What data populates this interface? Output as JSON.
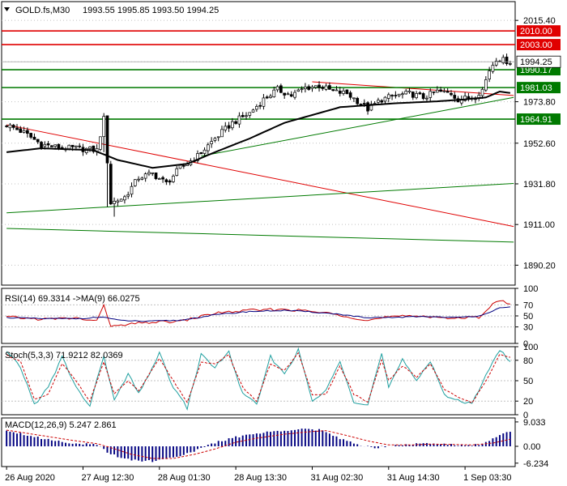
{
  "header": {
    "symbol_label": "GOLD.fs,M30",
    "ohlc_label": "1993.55 1995.85 1993.50 1994.25"
  },
  "colors": {
    "background": "#ffffff",
    "frame": "#000000",
    "grid": "#c0c0c0",
    "bull_candle": "#ffffff",
    "bear_candle": "#000000",
    "resistance": "#e00000",
    "support": "#007a00",
    "ma": "#000000",
    "rsi": "#cc0000",
    "rsi_ma": "#000080",
    "stoch_main": "#20a0a0",
    "stoch_signal": "#cc0000",
    "macd_hist": "#000080",
    "macd_signal": "#cc0000"
  },
  "chart_data": [
    {
      "type": "candlestick",
      "title": "GOLD.fs,M30",
      "ylim": [
        1880,
        2025
      ],
      "y_ticks": [
        "2015.40",
        "1994.25",
        "1973.80",
        "1952.60",
        "1931.80",
        "1911.00",
        "1890.20"
      ],
      "x_ticks": [
        "26 Aug 2020",
        "27 Aug 12:30",
        "28 Aug 01:30",
        "28 Aug 13:30",
        "31 Aug 02:30",
        "31 Aug 14:30",
        "1 Sep 03:30"
      ],
      "x_ticks_bar": [
        0,
        22,
        44,
        66,
        88,
        110,
        132
      ],
      "bar_count": 146,
      "current_price": "1994.25",
      "horizontal_levels": [
        {
          "value": 2010.0,
          "label": "2010.00",
          "color": "#e00000"
        },
        {
          "value": 2003.0,
          "label": "2003.00",
          "color": "#e00000"
        },
        {
          "value": 1990.17,
          "label": "1990.17",
          "color": "#007a00"
        },
        {
          "value": 1981.03,
          "label": "1981.03",
          "color": "#007a00"
        },
        {
          "value": 1964.91,
          "label": "1964.91",
          "color": "#007a00"
        }
      ],
      "trendlines": [
        {
          "from": [
            0,
            1962
          ],
          "to": [
            146,
            1910
          ],
          "color": "#e00000"
        },
        {
          "from": [
            0,
            1917
          ],
          "to": [
            146,
            1932
          ],
          "color": "#007a00"
        },
        {
          "from": [
            0,
            1909
          ],
          "to": [
            146,
            1902
          ],
          "color": "#007a00"
        },
        {
          "from": [
            56,
            1946
          ],
          "to": [
            146,
            1976
          ],
          "color": "#007a00"
        },
        {
          "from": [
            88,
            1984
          ],
          "to": [
            146,
            1977
          ],
          "color": "#e00000"
        }
      ],
      "series": [
        {
          "name": "close",
          "anchors": [
            [
              0,
              1962
            ],
            [
              5,
              1958
            ],
            [
              10,
              1952
            ],
            [
              16,
              1950
            ],
            [
              20,
              1950
            ],
            [
              26,
              1949
            ],
            [
              28,
              1965
            ],
            [
              30,
              1922
            ],
            [
              34,
              1925
            ],
            [
              38,
              1935
            ],
            [
              42,
              1937
            ],
            [
              46,
              1932
            ],
            [
              50,
              1940
            ],
            [
              55,
              1946
            ],
            [
              60,
              1955
            ],
            [
              65,
              1963
            ],
            [
              70,
              1968
            ],
            [
              74,
              1975
            ],
            [
              78,
              1980
            ],
            [
              82,
              1977
            ],
            [
              86,
              1981
            ],
            [
              90,
              1982
            ],
            [
              94,
              1979
            ],
            [
              98,
              1978
            ],
            [
              102,
              1973
            ],
            [
              104,
              1970
            ],
            [
              108,
              1975
            ],
            [
              112,
              1977
            ],
            [
              116,
              1978
            ],
            [
              120,
              1976
            ],
            [
              124,
              1979
            ],
            [
              128,
              1978
            ],
            [
              130,
              1975
            ],
            [
              134,
              1976
            ],
            [
              137,
              1980
            ],
            [
              139,
              1990
            ],
            [
              141,
              1996
            ],
            [
              143,
              1995
            ],
            [
              145,
              1994.25
            ]
          ]
        },
        {
          "name": "moving-average",
          "anchors": [
            [
              0,
              1948
            ],
            [
              10,
              1950
            ],
            [
              25,
              1949
            ],
            [
              32,
              1944
            ],
            [
              42,
              1940
            ],
            [
              52,
              1942
            ],
            [
              60,
              1948
            ],
            [
              70,
              1955
            ],
            [
              80,
              1963
            ],
            [
              88,
              1967
            ],
            [
              96,
              1971
            ],
            [
              104,
              1972
            ],
            [
              112,
              1973
            ],
            [
              124,
              1974
            ],
            [
              132,
              1975
            ],
            [
              138,
              1976
            ],
            [
              142,
              1979
            ],
            [
              146,
              1978
            ]
          ]
        }
      ]
    },
    {
      "type": "line",
      "title": "RSI(14) 69.3314  ->MA(9) 66.0275",
      "ylim": [
        0,
        100
      ],
      "y_ticks": [
        "100",
        "70",
        "50",
        "30",
        "0"
      ],
      "series": [
        {
          "name": "RSI(14)",
          "anchors": [
            [
              0,
              48
            ],
            [
              10,
              44
            ],
            [
              20,
              46
            ],
            [
              26,
              40
            ],
            [
              28,
              72
            ],
            [
              30,
              30
            ],
            [
              40,
              38
            ],
            [
              50,
              40
            ],
            [
              60,
              55
            ],
            [
              70,
              60
            ],
            [
              80,
              62
            ],
            [
              88,
              58
            ],
            [
              96,
              52
            ],
            [
              104,
              42
            ],
            [
              110,
              48
            ],
            [
              120,
              50
            ],
            [
              130,
              45
            ],
            [
              136,
              48
            ],
            [
              140,
              72
            ],
            [
              142,
              78
            ],
            [
              146,
              69
            ]
          ]
        },
        {
          "name": "MA(9)",
          "anchors": [
            [
              0,
              47
            ],
            [
              10,
              45
            ],
            [
              20,
              45
            ],
            [
              28,
              48
            ],
            [
              32,
              42
            ],
            [
              40,
              40
            ],
            [
              50,
              42
            ],
            [
              60,
              52
            ],
            [
              70,
              58
            ],
            [
              80,
              60
            ],
            [
              88,
              57
            ],
            [
              96,
              53
            ],
            [
              104,
              46
            ],
            [
              110,
              47
            ],
            [
              120,
              49
            ],
            [
              130,
              47
            ],
            [
              136,
              50
            ],
            [
              142,
              64
            ],
            [
              146,
              66
            ]
          ]
        }
      ]
    },
    {
      "type": "line",
      "title": "Stoch(5,3,3) 71.9212 82.0369",
      "ylim": [
        0,
        100
      ],
      "y_ticks": [
        "100",
        "80",
        "50",
        "20",
        "0"
      ],
      "series": [
        {
          "name": "main",
          "anchors": [
            [
              0,
              92
            ],
            [
              4,
              70
            ],
            [
              8,
              15
            ],
            [
              12,
              40
            ],
            [
              16,
              85
            ],
            [
              20,
              40
            ],
            [
              24,
              12
            ],
            [
              28,
              88
            ],
            [
              31,
              20
            ],
            [
              35,
              60
            ],
            [
              38,
              30
            ],
            [
              44,
              90
            ],
            [
              48,
              40
            ],
            [
              52,
              10
            ],
            [
              56,
              88
            ],
            [
              60,
              70
            ],
            [
              64,
              92
            ],
            [
              68,
              30
            ],
            [
              72,
              15
            ],
            [
              76,
              85
            ],
            [
              80,
              60
            ],
            [
              84,
              95
            ],
            [
              88,
              20
            ],
            [
              92,
              35
            ],
            [
              96,
              80
            ],
            [
              100,
              20
            ],
            [
              104,
              15
            ],
            [
              108,
              90
            ],
            [
              110,
              40
            ],
            [
              114,
              80
            ],
            [
              118,
              50
            ],
            [
              122,
              80
            ],
            [
              126,
              30
            ],
            [
              130,
              20
            ],
            [
              134,
              15
            ],
            [
              138,
              60
            ],
            [
              142,
              95
            ],
            [
              146,
              72
            ]
          ]
        },
        {
          "name": "signal",
          "anchors": [
            [
              0,
              88
            ],
            [
              4,
              78
            ],
            [
              8,
              22
            ],
            [
              12,
              30
            ],
            [
              16,
              75
            ],
            [
              20,
              50
            ],
            [
              24,
              20
            ],
            [
              28,
              78
            ],
            [
              31,
              30
            ],
            [
              35,
              50
            ],
            [
              38,
              35
            ],
            [
              44,
              82
            ],
            [
              48,
              50
            ],
            [
              52,
              18
            ],
            [
              56,
              78
            ],
            [
              60,
              74
            ],
            [
              64,
              88
            ],
            [
              68,
              40
            ],
            [
              72,
              20
            ],
            [
              76,
              75
            ],
            [
              80,
              65
            ],
            [
              84,
              90
            ],
            [
              88,
              30
            ],
            [
              92,
              30
            ],
            [
              96,
              72
            ],
            [
              100,
              30
            ],
            [
              104,
              18
            ],
            [
              108,
              80
            ],
            [
              110,
              50
            ],
            [
              114,
              72
            ],
            [
              118,
              55
            ],
            [
              122,
              75
            ],
            [
              126,
              38
            ],
            [
              130,
              25
            ],
            [
              134,
              18
            ],
            [
              138,
              50
            ],
            [
              142,
              88
            ],
            [
              146,
              82
            ]
          ]
        }
      ]
    },
    {
      "type": "bar",
      "title": "MACD(12,26,9) 5.247 2.861",
      "ylim": [
        -7.5,
        10.5
      ],
      "y_ticks": [
        "9.033",
        "0.00",
        "-6.234"
      ],
      "series": [
        {
          "name": "MACD",
          "anchors": [
            [
              0,
              6
            ],
            [
              10,
              3
            ],
            [
              20,
              1
            ],
            [
              26,
              0.5
            ],
            [
              30,
              -3
            ],
            [
              36,
              -5
            ],
            [
              42,
              -5.5
            ],
            [
              48,
              -4
            ],
            [
              54,
              -2
            ],
            [
              58,
              0.5
            ],
            [
              62,
              2
            ],
            [
              68,
              4
            ],
            [
              74,
              5
            ],
            [
              80,
              6
            ],
            [
              86,
              6.5
            ],
            [
              90,
              6
            ],
            [
              96,
              3
            ],
            [
              100,
              1
            ],
            [
              106,
              -0.5
            ],
            [
              112,
              0.5
            ],
            [
              118,
              1
            ],
            [
              124,
              0.8
            ],
            [
              130,
              0.5
            ],
            [
              136,
              0.5
            ],
            [
              140,
              3
            ],
            [
              144,
              5
            ],
            [
              146,
              5.2
            ]
          ]
        },
        {
          "name": "signal",
          "anchors": [
            [
              0,
              6
            ],
            [
              10,
              4
            ],
            [
              20,
              2
            ],
            [
              26,
              1
            ],
            [
              30,
              -0.5
            ],
            [
              36,
              -3
            ],
            [
              42,
              -4.5
            ],
            [
              48,
              -4.5
            ],
            [
              54,
              -3
            ],
            [
              60,
              -1
            ],
            [
              66,
              1.5
            ],
            [
              72,
              3
            ],
            [
              80,
              4.5
            ],
            [
              88,
              5.5
            ],
            [
              92,
              5.8
            ],
            [
              98,
              4
            ],
            [
              104,
              2
            ],
            [
              110,
              0.5
            ],
            [
              116,
              0.5
            ],
            [
              122,
              0.8
            ],
            [
              128,
              0.7
            ],
            [
              134,
              0.5
            ],
            [
              140,
              1.2
            ],
            [
              146,
              2.9
            ]
          ]
        }
      ]
    }
  ]
}
